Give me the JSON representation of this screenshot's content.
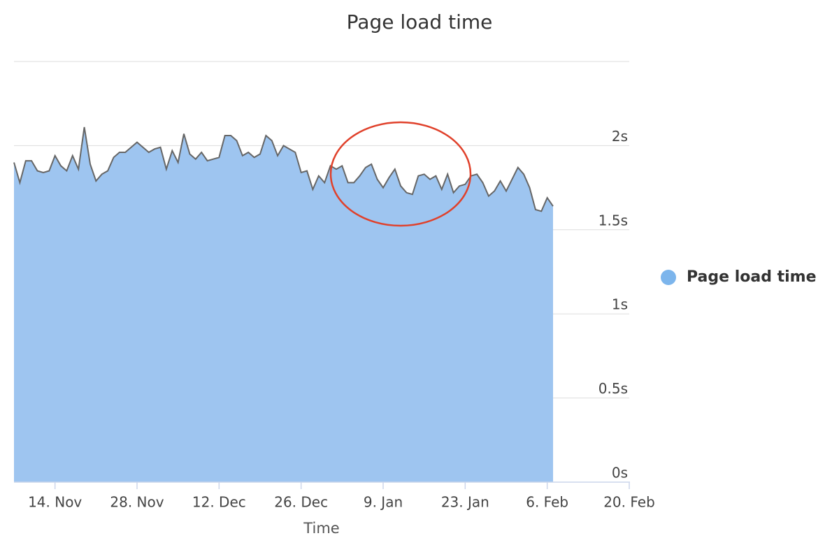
{
  "chart_data": {
    "type": "area",
    "title": "Page load time",
    "x_label": "Time",
    "x": [
      "11-07",
      "11-08",
      "11-09",
      "11-10",
      "11-11",
      "11-12",
      "11-13",
      "11-14",
      "11-15",
      "11-16",
      "11-17",
      "11-18",
      "11-19",
      "11-20",
      "11-21",
      "11-22",
      "11-23",
      "11-24",
      "11-25",
      "11-26",
      "11-27",
      "11-28",
      "11-29",
      "11-30",
      "12-01",
      "12-02",
      "12-03",
      "12-04",
      "12-05",
      "12-06",
      "12-07",
      "12-08",
      "12-09",
      "12-10",
      "12-11",
      "12-12",
      "12-13",
      "12-14",
      "12-15",
      "12-16",
      "12-17",
      "12-18",
      "12-19",
      "12-20",
      "12-21",
      "12-22",
      "12-23",
      "12-24",
      "12-25",
      "12-26",
      "12-27",
      "12-28",
      "12-29",
      "12-30",
      "12-31",
      "01-01",
      "01-02",
      "01-03",
      "01-04",
      "01-05",
      "01-06",
      "01-07",
      "01-08",
      "01-09",
      "01-10",
      "01-11",
      "01-12",
      "01-13",
      "01-14",
      "01-15",
      "01-16",
      "01-17",
      "01-18",
      "01-19",
      "01-20",
      "01-21",
      "01-22",
      "01-23",
      "01-24",
      "01-25",
      "01-26",
      "01-27",
      "01-28",
      "01-29",
      "01-30",
      "01-31",
      "02-01",
      "02-02",
      "02-03",
      "02-04",
      "02-05",
      "02-06",
      "02-07"
    ],
    "series": [
      {
        "name": "Page load time",
        "color": "#9ec5f0",
        "line_color": "#666666",
        "legend_color": "#7cb5ec",
        "values": [
          1.9,
          1.78,
          1.91,
          1.91,
          1.85,
          1.84,
          1.85,
          1.94,
          1.88,
          1.85,
          1.94,
          1.86,
          2.11,
          1.89,
          1.79,
          1.83,
          1.85,
          1.93,
          1.96,
          1.96,
          1.99,
          2.02,
          1.99,
          1.96,
          1.98,
          1.99,
          1.86,
          1.97,
          1.9,
          2.07,
          1.95,
          1.92,
          1.96,
          1.91,
          1.92,
          1.93,
          2.06,
          2.06,
          2.03,
          1.94,
          1.96,
          1.93,
          1.95,
          2.06,
          2.03,
          1.94,
          2.0,
          1.98,
          1.96,
          1.84,
          1.85,
          1.74,
          1.82,
          1.78,
          1.88,
          1.86,
          1.88,
          1.78,
          1.78,
          1.82,
          1.87,
          1.89,
          1.8,
          1.75,
          1.81,
          1.86,
          1.76,
          1.72,
          1.71,
          1.82,
          1.83,
          1.8,
          1.82,
          1.74,
          1.83,
          1.72,
          1.76,
          1.77,
          1.82,
          1.83,
          1.78,
          1.7,
          1.73,
          1.79,
          1.73,
          1.8,
          1.87,
          1.83,
          1.75,
          1.62,
          1.61,
          1.69,
          1.64
        ]
      }
    ],
    "xlim": [
      "11-07",
      "02-20"
    ],
    "xticks": [
      {
        "value": "11-14",
        "label": "14. Nov"
      },
      {
        "value": "11-28",
        "label": "28. Nov"
      },
      {
        "value": "12-12",
        "label": "12. Dec"
      },
      {
        "value": "12-26",
        "label": "26. Dec"
      },
      {
        "value": "01-09",
        "label": "9. Jan"
      },
      {
        "value": "01-23",
        "label": "23. Jan"
      },
      {
        "value": "02-06",
        "label": "6. Feb"
      },
      {
        "value": "02-20",
        "label": "20. Feb"
      }
    ],
    "ylim": [
      0,
      2.5
    ],
    "yticks": [
      {
        "value": 0,
        "label": "0s"
      },
      {
        "value": 0.5,
        "label": "0.5s"
      },
      {
        "value": 1,
        "label": "1s"
      },
      {
        "value": 1.5,
        "label": "1.5s"
      },
      {
        "value": 2,
        "label": "2s"
      }
    ],
    "grid": true,
    "legend": "right"
  }
}
